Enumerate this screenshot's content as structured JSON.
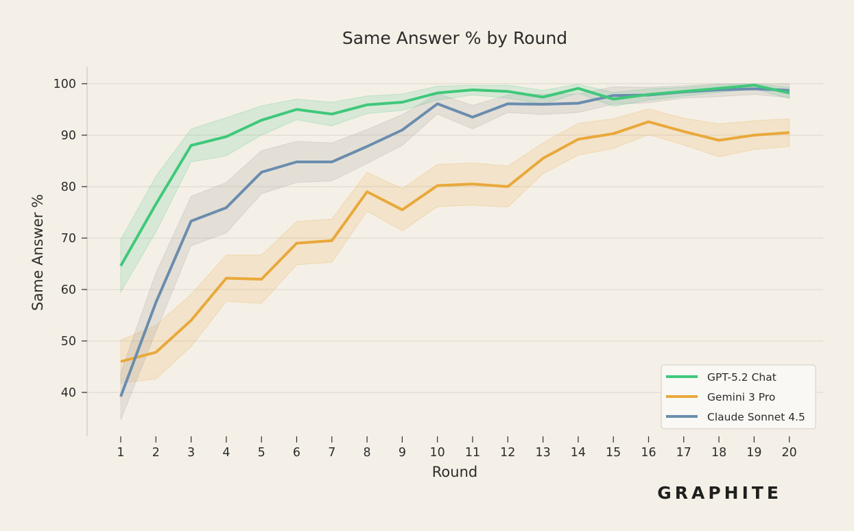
{
  "chart_data": {
    "type": "line",
    "title": "Same Answer % by Round",
    "xlabel": "Round",
    "ylabel": "Same Answer %",
    "x": [
      1,
      2,
      3,
      4,
      5,
      6,
      7,
      8,
      9,
      10,
      11,
      12,
      13,
      14,
      15,
      16,
      17,
      18,
      19,
      20
    ],
    "xticks": [
      "1",
      "2",
      "3",
      "4",
      "5",
      "6",
      "7",
      "8",
      "9",
      "10",
      "11",
      "12",
      "13",
      "14",
      "15",
      "16",
      "17",
      "18",
      "19",
      "20"
    ],
    "yticks": [
      "40",
      "50",
      "60",
      "70",
      "80",
      "90",
      "100"
    ],
    "ylim": [
      32.5,
      103.5
    ],
    "grid": "horizontal",
    "legend_position": "lower-right",
    "series": [
      {
        "name": "GPT-5.2 Chat",
        "color": "#3fc87a",
        "values": [
          64.6,
          76.6,
          88.0,
          89.7,
          92.9,
          95.0,
          94.1,
          95.9,
          96.4,
          98.2,
          98.8,
          98.5,
          97.4,
          99.1,
          97.0,
          97.9,
          98.5,
          99.1,
          99.7,
          98.2
        ],
        "lower": [
          59.5,
          71.2,
          84.8,
          86.0,
          90.0,
          93.0,
          91.8,
          94.2,
          94.8,
          96.8,
          97.8,
          97.2,
          96.0,
          98.2,
          95.6,
          96.8,
          97.6,
          98.3,
          99.0,
          97.1
        ],
        "upper": [
          69.7,
          82.0,
          91.2,
          93.4,
          95.7,
          97.0,
          96.4,
          97.6,
          98.0,
          99.5,
          99.7,
          99.7,
          98.7,
          99.9,
          98.3,
          99.0,
          99.3,
          99.8,
          100.0,
          99.3
        ]
      },
      {
        "name": "Gemini 3 Pro",
        "color": "#e8a93a",
        "values": [
          46.0,
          47.8,
          54.0,
          62.2,
          62.0,
          69.0,
          69.5,
          79.0,
          75.5,
          80.2,
          80.5,
          80.0,
          85.5,
          89.2,
          90.3,
          92.6,
          90.7,
          89.0,
          90.0,
          90.5
        ],
        "lower": [
          41.8,
          42.6,
          48.9,
          57.7,
          57.3,
          64.8,
          65.3,
          75.2,
          71.4,
          76.1,
          76.4,
          76.0,
          82.5,
          86.1,
          87.4,
          90.1,
          88.1,
          85.8,
          87.2,
          87.8
        ],
        "upper": [
          50.2,
          53.0,
          59.1,
          66.7,
          66.7,
          73.2,
          73.7,
          82.8,
          79.6,
          84.3,
          84.6,
          84.0,
          88.5,
          92.3,
          93.2,
          95.1,
          93.3,
          92.2,
          92.8,
          93.2
        ]
      },
      {
        "name": "Claude Sonnet 4.5",
        "color": "#6a8cad",
        "values": [
          39.2,
          57.5,
          73.3,
          75.9,
          82.8,
          84.8,
          84.8,
          87.8,
          91.0,
          96.1,
          93.5,
          96.1,
          96.0,
          96.2,
          97.7,
          97.8,
          98.4,
          98.8,
          99.0,
          98.7
        ],
        "lower": [
          34.6,
          51.8,
          68.5,
          71.0,
          78.6,
          80.8,
          81.1,
          84.5,
          88.0,
          94.1,
          91.2,
          94.4,
          94.0,
          94.4,
          96.0,
          96.3,
          97.2,
          97.5,
          97.9,
          97.3
        ],
        "upper": [
          43.8,
          63.2,
          78.1,
          80.8,
          87.0,
          88.8,
          88.5,
          91.1,
          94.0,
          98.1,
          95.8,
          97.8,
          98.0,
          98.0,
          99.4,
          99.3,
          99.6,
          100.0,
          100.0,
          100.0
        ]
      }
    ]
  },
  "branding": {
    "logo": "GRAPHITE"
  },
  "colors": {
    "background": "#f5f0e7",
    "grid": "#dcd6cb",
    "axis": "#cfc9be"
  }
}
